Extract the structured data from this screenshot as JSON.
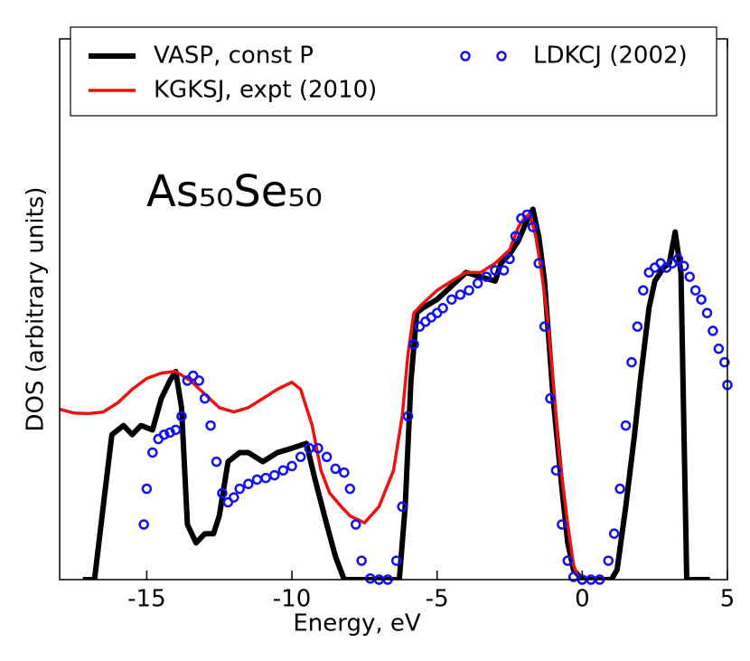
{
  "chart_data": {
    "type": "line",
    "annotation": "As₅₀Se₅₀",
    "xlabel": "Energy, eV",
    "ylabel": "DOS (arbitrary units)",
    "xlim": [
      -18,
      5
    ],
    "xticks": [
      -15,
      -10,
      -5,
      0,
      5
    ],
    "ylim": [
      0,
      100
    ],
    "yticks": [],
    "legend": "top",
    "series": [
      {
        "name": "VASP, const P",
        "color": "#000000",
        "style": "line",
        "x": [
          -17.2,
          -16.8,
          -16.5,
          -16.2,
          -15.8,
          -15.5,
          -15.2,
          -14.8,
          -14.5,
          -14.2,
          -14.0,
          -13.8,
          -13.6,
          -13.3,
          -13.0,
          -12.7,
          -12.5,
          -12.2,
          -11.8,
          -11.5,
          -11.0,
          -10.5,
          -10.0,
          -9.5,
          -9.2,
          -8.8,
          -8.5,
          -8.2,
          -7.0,
          -6.3,
          -6.1,
          -5.9,
          -5.7,
          -5.5,
          -5.0,
          -4.5,
          -4.0,
          -3.5,
          -3.0,
          -2.8,
          -2.5,
          -2.2,
          -2.0,
          -1.7,
          -1.5,
          -1.3,
          -1.0,
          -0.7,
          -0.5,
          -0.3,
          0.0,
          0.5,
          1.0,
          1.2,
          1.5,
          1.8,
          2.0,
          2.3,
          2.5,
          2.8,
          3.0,
          3.2,
          3.4,
          3.6,
          4.0,
          4.4
        ],
        "values": [
          0,
          0,
          13.5,
          26.8,
          28.5,
          26.8,
          28.5,
          27.7,
          33.5,
          36.8,
          38.5,
          31.8,
          10.2,
          6.8,
          8.5,
          8.5,
          11.8,
          21.8,
          23.5,
          23.5,
          21.8,
          23.5,
          24.3,
          25.2,
          18.5,
          10.2,
          4.3,
          0,
          0,
          0,
          13.5,
          36.8,
          49.3,
          50.2,
          51.8,
          54.3,
          56.8,
          56,
          55.2,
          58.5,
          60.2,
          62.7,
          65.2,
          68.5,
          63.5,
          55.2,
          33.5,
          16.8,
          6.8,
          1.8,
          0,
          0,
          0,
          1.8,
          13.5,
          26.8,
          36.8,
          50.2,
          55.2,
          57.7,
          58.5,
          64.3,
          56.8,
          0,
          0,
          0
        ]
      },
      {
        "name": "KGKSJ, expt (2010)",
        "color": "#ee1111",
        "style": "line",
        "x": [
          -18,
          -17.5,
          -17,
          -16.5,
          -16,
          -15.5,
          -15,
          -14.5,
          -14,
          -13.5,
          -13,
          -12.5,
          -12,
          -11.5,
          -11,
          -10.5,
          -10,
          -9.7,
          -9.3,
          -9,
          -8.7,
          -8.3,
          -8,
          -7.5,
          -7,
          -6.5,
          -6.2,
          -6.0,
          -5.8,
          -5.5,
          -5,
          -4.5,
          -4,
          -3.5,
          -3,
          -2.5,
          -2.2,
          -2.0,
          -1.8,
          -1.6,
          -1.4,
          -1.2,
          -1,
          -0.8,
          -0.5,
          -0.3,
          -0.1
        ],
        "values": [
          31.5,
          30.8,
          30.7,
          31,
          32.7,
          35.2,
          37.2,
          38.2,
          38.5,
          36.8,
          34.3,
          31.8,
          31,
          31.8,
          33.5,
          35.2,
          36.5,
          35.2,
          28.5,
          20.2,
          16,
          13.5,
          11.8,
          10.5,
          13.5,
          20.2,
          30.2,
          41.8,
          49.3,
          51,
          53.5,
          55.2,
          56.8,
          56.8,
          58.5,
          61,
          65.2,
          66.8,
          67.7,
          63.5,
          56.8,
          48.5,
          36.8,
          23.5,
          10.2,
          2.7,
          0
        ]
      },
      {
        "name": "LDKCJ (2002)",
        "color": "#1111ee",
        "style": "markers",
        "x": [
          -15.1,
          -15.0,
          -14.8,
          -14.6,
          -14.4,
          -14.2,
          -14.0,
          -13.8,
          -13.6,
          -13.4,
          -13.2,
          -13.0,
          -12.8,
          -12.6,
          -12.4,
          -12.2,
          -12.0,
          -11.8,
          -11.5,
          -11.2,
          -10.9,
          -10.6,
          -10.3,
          -10.0,
          -9.7,
          -9.4,
          -9.1,
          -8.8,
          -8.5,
          -8.2,
          -8.0,
          -7.8,
          -7.6,
          -7.3,
          -7.0,
          -6.7,
          -6.4,
          -6.2,
          -6.0,
          -5.8,
          -5.6,
          -5.4,
          -5.2,
          -5.0,
          -4.8,
          -4.5,
          -4.2,
          -3.9,
          -3.6,
          -3.3,
          -3.0,
          -2.7,
          -2.5,
          -2.3,
          -2.1,
          -1.9,
          -1.7,
          -1.5,
          -1.3,
          -1.1,
          -0.9,
          -0.7,
          -0.5,
          -0.3,
          0.0,
          0.3,
          0.6,
          0.9,
          1.1,
          1.3,
          1.5,
          1.7,
          1.9,
          2.1,
          2.3,
          2.5,
          2.7,
          2.9,
          3.1,
          3.3,
          3.5,
          3.7,
          3.9,
          4.1,
          4.3,
          4.5,
          4.7,
          4.9,
          5.0
        ],
        "values": [
          10.2,
          16.8,
          23.5,
          26,
          26.8,
          27.2,
          27.7,
          30.2,
          36.8,
          37.7,
          36.8,
          33.5,
          28.5,
          21.8,
          16,
          14.3,
          15.2,
          16.8,
          17.7,
          18.5,
          18.8,
          19.3,
          20.2,
          21,
          22.7,
          24.3,
          24.3,
          22.7,
          20.5,
          19.8,
          16.8,
          10.2,
          3.5,
          0.2,
          0,
          0,
          3.5,
          13.5,
          30.2,
          43.5,
          46.8,
          47.7,
          48.5,
          49.3,
          50.2,
          51.8,
          52.7,
          53.5,
          54.8,
          56,
          57.2,
          57.2,
          59.3,
          63.5,
          66.8,
          67.5,
          65.2,
          58.5,
          46.8,
          33.5,
          20.2,
          10.2,
          3.5,
          0.5,
          0,
          0,
          0,
          3.5,
          8.5,
          16.8,
          28.5,
          40.2,
          46.8,
          53.5,
          56.8,
          57.7,
          58.5,
          57.7,
          58.5,
          59.3,
          58,
          56,
          53.5,
          51.8,
          49.3,
          46,
          42.7,
          40.2,
          36
        ]
      }
    ]
  }
}
